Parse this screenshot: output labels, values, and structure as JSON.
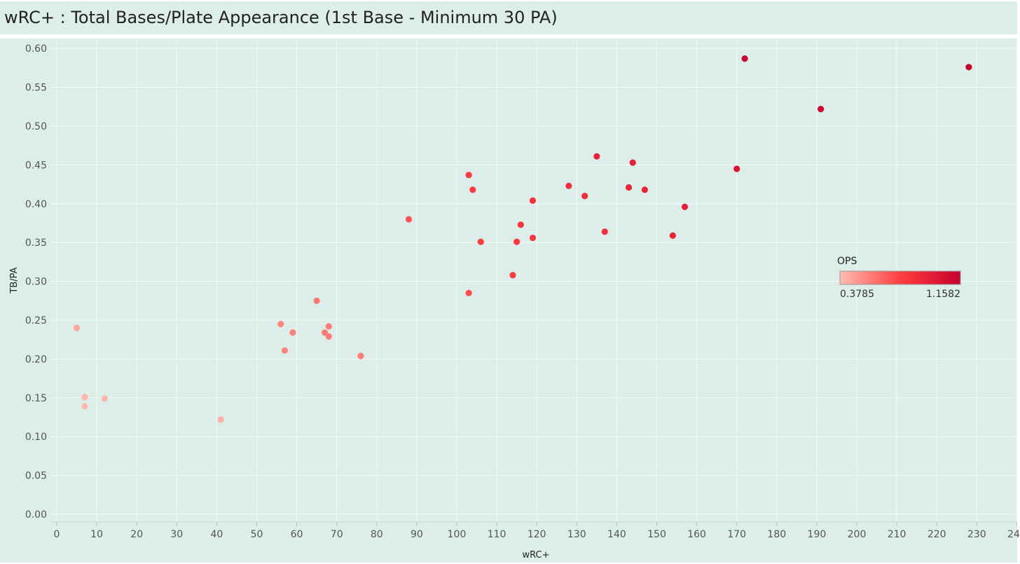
{
  "chart_data": {
    "type": "scatter",
    "title": "wRC+ : Total Bases/Plate Appearance (1st Base - Minimum 30 PA)",
    "xlabel": "wRC+",
    "ylabel": "TB/PA",
    "xlim": [
      0,
      240
    ],
    "ylim": [
      0,
      0.6
    ],
    "x_ticks": [
      "0",
      "10",
      "20",
      "30",
      "40",
      "50",
      "60",
      "70",
      "80",
      "90",
      "100",
      "110",
      "120",
      "130",
      "140",
      "150",
      "160",
      "170",
      "180",
      "190",
      "200",
      "210",
      "220",
      "230",
      "240"
    ],
    "y_ticks": [
      "0.00",
      "0.05",
      "0.10",
      "0.15",
      "0.20",
      "0.25",
      "0.30",
      "0.35",
      "0.40",
      "0.45",
      "0.50",
      "0.55",
      "0.60"
    ],
    "grid": true,
    "color_legend": {
      "title": "OPS",
      "min_label": "0.3785",
      "max_label": "1.1582",
      "min": 0.3785,
      "max": 1.1582,
      "color_low": "#fdbdb2",
      "color_mid": "#ff3f3f",
      "color_high": "#c6002e",
      "placement": "right"
    },
    "points": [
      {
        "x": 5,
        "y": 0.24,
        "ops": 0.45
      },
      {
        "x": 7,
        "y": 0.151,
        "ops": 0.4
      },
      {
        "x": 7,
        "y": 0.139,
        "ops": 0.39
      },
      {
        "x": 12,
        "y": 0.149,
        "ops": 0.4
      },
      {
        "x": 41,
        "y": 0.122,
        "ops": 0.42
      },
      {
        "x": 56,
        "y": 0.245,
        "ops": 0.55
      },
      {
        "x": 57,
        "y": 0.211,
        "ops": 0.55
      },
      {
        "x": 59,
        "y": 0.234,
        "ops": 0.56
      },
      {
        "x": 65,
        "y": 0.275,
        "ops": 0.6
      },
      {
        "x": 67,
        "y": 0.234,
        "ops": 0.58
      },
      {
        "x": 68,
        "y": 0.242,
        "ops": 0.58
      },
      {
        "x": 68,
        "y": 0.229,
        "ops": 0.58
      },
      {
        "x": 76,
        "y": 0.204,
        "ops": 0.58
      },
      {
        "x": 88,
        "y": 0.38,
        "ops": 0.7
      },
      {
        "x": 103,
        "y": 0.285,
        "ops": 0.73
      },
      {
        "x": 103,
        "y": 0.437,
        "ops": 0.8
      },
      {
        "x": 104,
        "y": 0.418,
        "ops": 0.8
      },
      {
        "x": 106,
        "y": 0.351,
        "ops": 0.78
      },
      {
        "x": 114,
        "y": 0.308,
        "ops": 0.78
      },
      {
        "x": 115,
        "y": 0.351,
        "ops": 0.8
      },
      {
        "x": 116,
        "y": 0.373,
        "ops": 0.82
      },
      {
        "x": 119,
        "y": 0.356,
        "ops": 0.82
      },
      {
        "x": 119,
        "y": 0.404,
        "ops": 0.85
      },
      {
        "x": 128,
        "y": 0.423,
        "ops": 0.86
      },
      {
        "x": 132,
        "y": 0.41,
        "ops": 0.88
      },
      {
        "x": 135,
        "y": 0.461,
        "ops": 0.92
      },
      {
        "x": 137,
        "y": 0.364,
        "ops": 0.85
      },
      {
        "x": 143,
        "y": 0.421,
        "ops": 0.92
      },
      {
        "x": 144,
        "y": 0.453,
        "ops": 0.95
      },
      {
        "x": 147,
        "y": 0.418,
        "ops": 0.94
      },
      {
        "x": 154,
        "y": 0.359,
        "ops": 0.92
      },
      {
        "x": 157,
        "y": 0.396,
        "ops": 0.96
      },
      {
        "x": 170,
        "y": 0.445,
        "ops": 1.02
      },
      {
        "x": 172,
        "y": 0.587,
        "ops": 1.12
      },
      {
        "x": 191,
        "y": 0.522,
        "ops": 1.1
      },
      {
        "x": 228,
        "y": 0.576,
        "ops": 1.1582
      }
    ]
  }
}
